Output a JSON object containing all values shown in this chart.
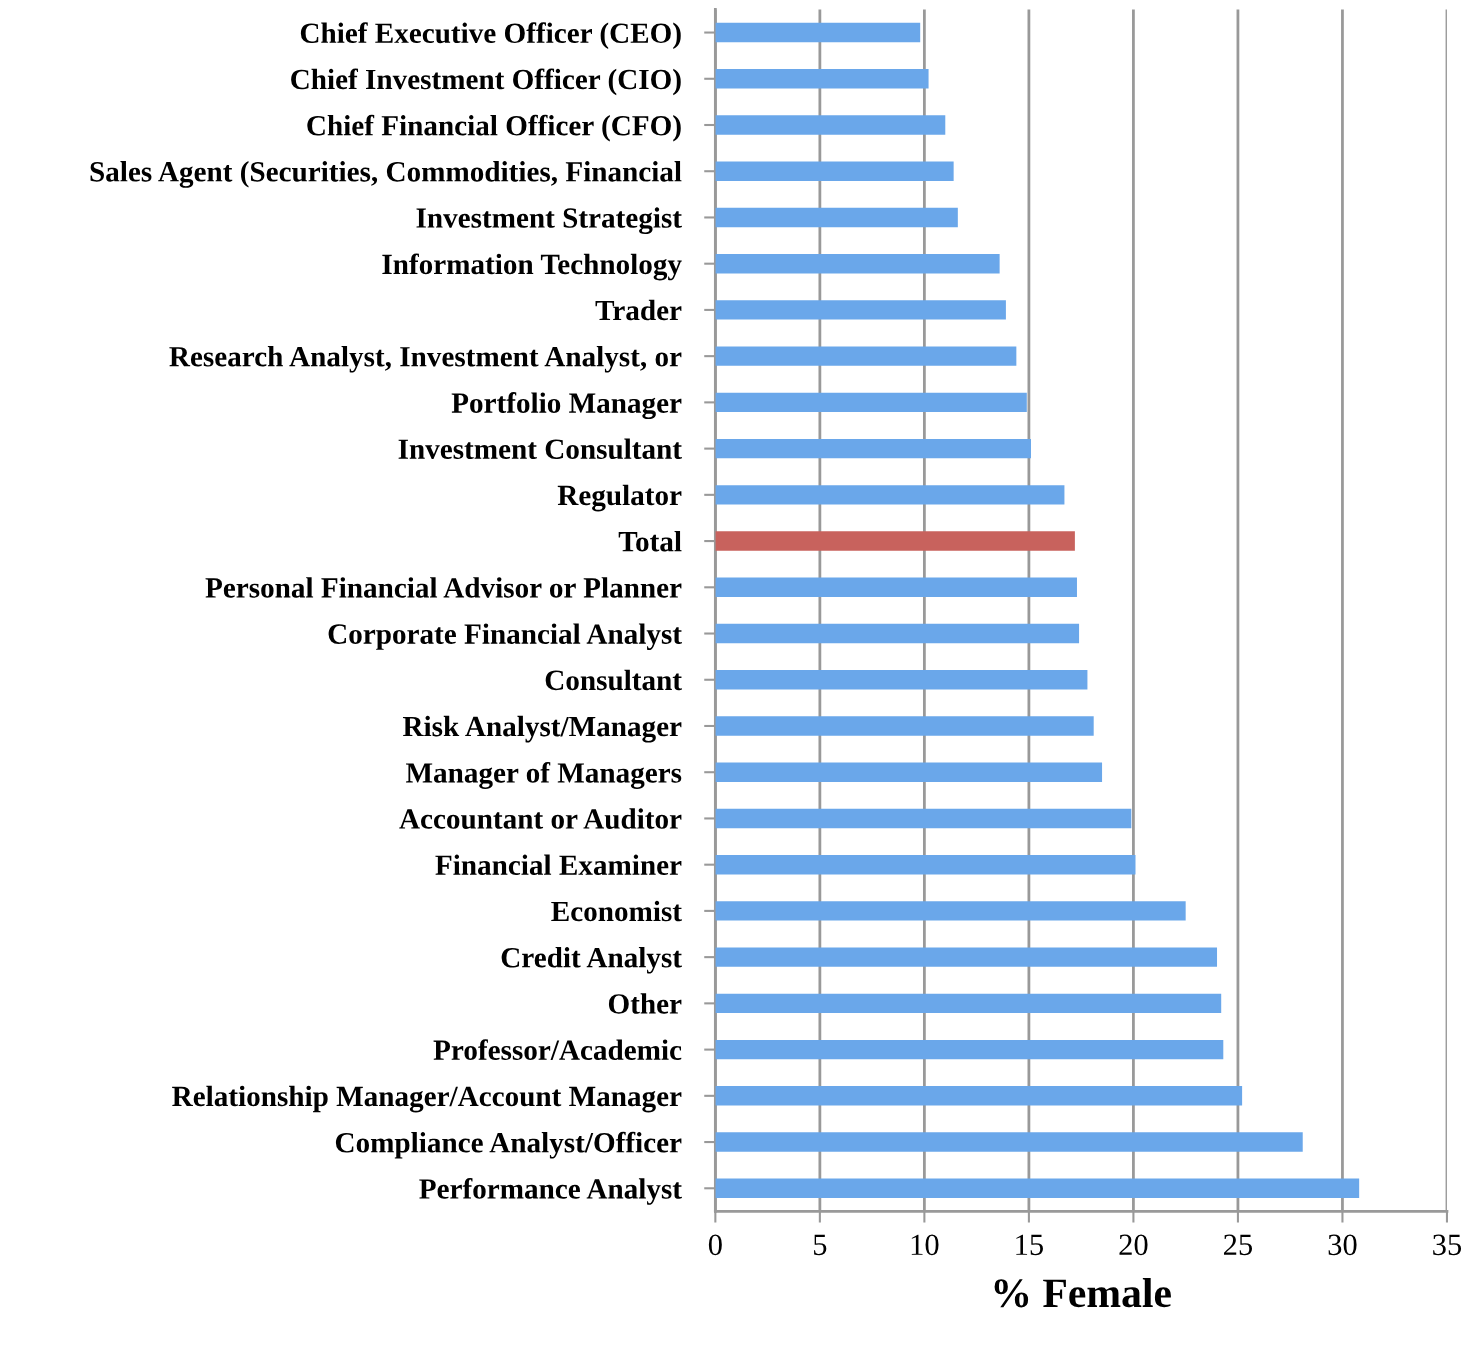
{
  "chart_data": {
    "type": "bar",
    "orientation": "horizontal",
    "xlabel": "% Female",
    "categories": [
      "Chief Executive Officer (CEO)",
      "Chief Investment Officer (CIO)",
      "Chief Financial Officer (CFO)",
      "Sales Agent (Securities, Commodities, Financial",
      "Investment Strategist",
      "Information Technology",
      "Trader",
      "Research Analyst, Investment Analyst, or",
      "Portfolio Manager",
      "Investment Consultant",
      "Regulator",
      "Total",
      "Personal Financial Advisor or Planner",
      "Corporate Financial Analyst",
      "Consultant",
      "Risk Analyst/Manager",
      "Manager of Managers",
      "Accountant or Auditor",
      "Financial Examiner",
      "Economist",
      "Credit Analyst",
      "Other",
      "Professor/Academic",
      "Relationship Manager/Account Manager",
      "Compliance Analyst/Officer",
      "Performance Analyst"
    ],
    "values": [
      9.8,
      10.2,
      11.0,
      11.4,
      11.6,
      13.6,
      13.9,
      14.4,
      14.9,
      15.1,
      16.7,
      17.2,
      17.3,
      17.4,
      17.8,
      18.1,
      18.5,
      19.9,
      20.1,
      22.5,
      24.0,
      24.2,
      24.3,
      25.2,
      28.1,
      30.8
    ],
    "colors": [
      "#6aa7ea",
      "#6aa7ea",
      "#6aa7ea",
      "#6aa7ea",
      "#6aa7ea",
      "#6aa7ea",
      "#6aa7ea",
      "#6aa7ea",
      "#6aa7ea",
      "#6aa7ea",
      "#6aa7ea",
      "#c8625d",
      "#6aa7ea",
      "#6aa7ea",
      "#6aa7ea",
      "#6aa7ea",
      "#6aa7ea",
      "#6aa7ea",
      "#6aa7ea",
      "#6aa7ea",
      "#6aa7ea",
      "#6aa7ea",
      "#6aa7ea",
      "#6aa7ea",
      "#6aa7ea",
      "#6aa7ea"
    ],
    "xlim": [
      0,
      35
    ],
    "xticks": [
      0,
      5,
      10,
      15,
      20,
      25,
      30,
      35
    ],
    "grid": "x",
    "legend": false
  }
}
